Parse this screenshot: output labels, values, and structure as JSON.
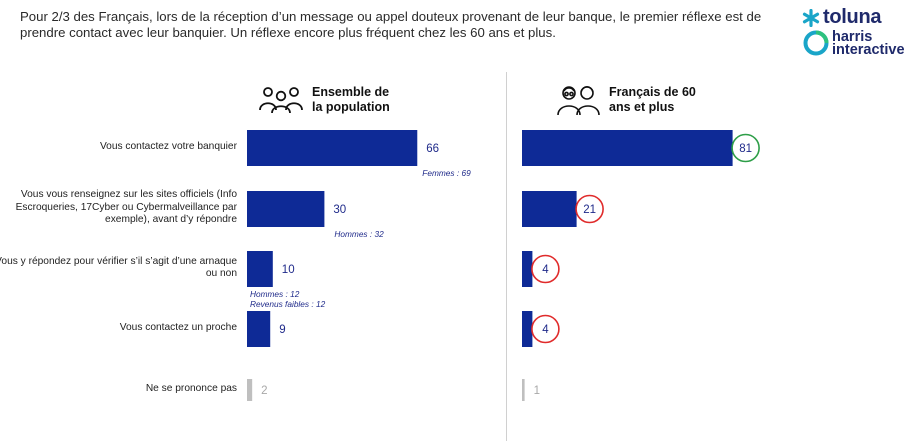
{
  "intro_text": "Pour 2/3 des Français, lors de la réception d’un message ou appel douteux provenant de leur banque, le premier réflexe est de prendre contact avec leur banquier. Un réflexe encore plus fréquent chez les  60 ans et plus.",
  "logo": {
    "brand": "toluna",
    "sub1": "harris",
    "sub2": "interactive"
  },
  "colors": {
    "bar": "#0e2a96",
    "muted": "#bfbfbf",
    "circle_red": "#e02b2b",
    "circle_green": "#2e9e48",
    "value_text": "#1f2a8a"
  },
  "chart_data": {
    "type": "bar",
    "orientation": "horizontal",
    "categories": [
      "Vous contactez votre banquier",
      "Vous vous renseignez sur les sites officiels (Info Escroqueries, 17Cyber ou Cybermalveillance par exemple), avant d’y répondre",
      "Vous y répondez pour vérifier s’il s’agit d’une arnaque ou non",
      "Vous contactez un proche",
      "Ne se prononce pas"
    ],
    "series": [
      {
        "name": "Ensemble de la population",
        "values": [
          66,
          30,
          10,
          9,
          2
        ],
        "icon": "people-group-icon",
        "notes": [
          [
            "Femmes : 69"
          ],
          [
            "Hommes : 32"
          ],
          [
            "Hommes : 12",
            "Revenus faibles : 12"
          ],
          [],
          []
        ]
      },
      {
        "name": "Français de 60 ans et plus",
        "values": [
          81,
          21,
          4,
          4,
          1
        ],
        "icon": "elderly-couple-icon",
        "highlight": [
          "higher",
          "lower",
          "lower",
          "lower",
          "none"
        ]
      }
    ],
    "muted_categories": [
      4
    ],
    "xlim": [
      0,
      100
    ],
    "grid": false,
    "legend": "column headers"
  }
}
